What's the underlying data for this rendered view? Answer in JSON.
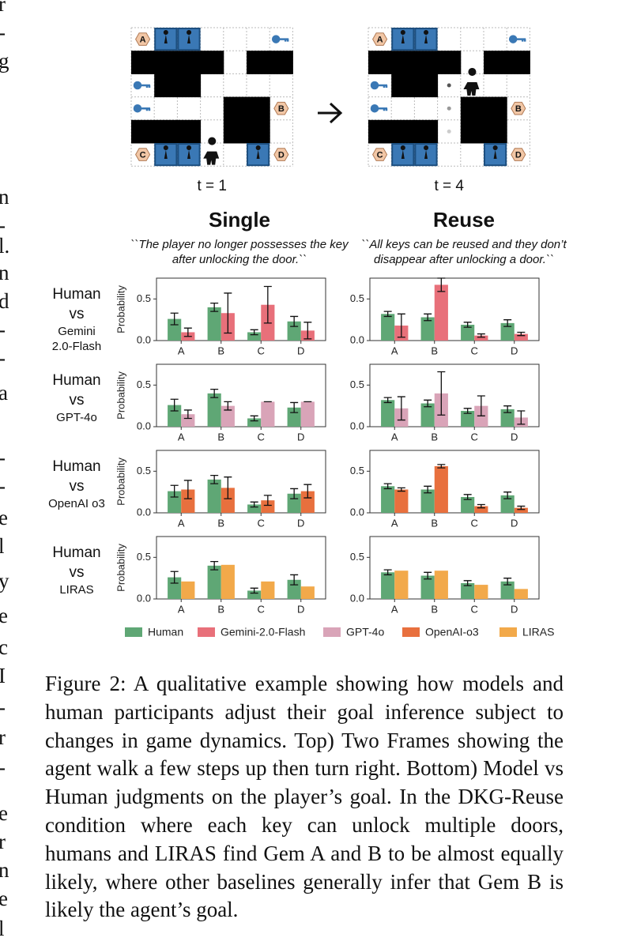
{
  "margin_text": [
    "r",
    "-",
    "g",
    "n",
    "-",
    "l.",
    "n",
    "d",
    "-",
    "-",
    "a",
    "-",
    "-",
    "e",
    "l",
    "y",
    "e",
    "c",
    "I",
    "-",
    "r",
    "-",
    "e",
    "r",
    "n",
    "e",
    "l"
  ],
  "frames": [
    {
      "caption": "t = 1",
      "gems": [
        "A",
        "B",
        "C",
        "D"
      ]
    },
    {
      "caption": "t = 4",
      "gems": [
        "A",
        "B",
        "C",
        "D"
      ]
    }
  ],
  "columns": [
    {
      "title": "Single",
      "quote": "``The player no longer possesses the key after unlocking the door.``"
    },
    {
      "title": "Reuse",
      "quote": "``All keys can be reused and they don’t disappear after unlocking a door.``"
    }
  ],
  "row_labels": [
    [
      "Human",
      "vs",
      "Gemini",
      "2.0-Flash"
    ],
    [
      "Human",
      "vs",
      "GPT-4o"
    ],
    [
      "Human",
      "vs",
      "OpenAI o3"
    ],
    [
      "Human",
      "vs",
      "LIRAS"
    ]
  ],
  "chart_data": [
    {
      "type": "bar",
      "ylabel": "Probability",
      "categories": [
        "A",
        "B",
        "C",
        "D"
      ],
      "ylim": [
        0,
        0.75
      ],
      "yticks": [
        {
          "value": 0,
          "label": "0.0"
        },
        0.5
      ],
      "series": [
        {
          "name": "Human",
          "color": "#5fa775",
          "values": [
            0.26,
            0.4,
            0.1,
            0.23
          ],
          "errors": [
            0.07,
            0.05,
            0.03,
            0.06
          ]
        },
        {
          "name": "Gemini-2.0-Flash",
          "color": "#e8707a",
          "values": [
            0.1,
            0.33,
            0.43,
            0.12
          ],
          "errors": [
            0.05,
            0.24,
            0.22,
            0.1
          ]
        }
      ]
    },
    {
      "type": "bar",
      "categories": [
        "A",
        "B",
        "C",
        "D"
      ],
      "ylim": [
        0,
        0.75
      ],
      "yticks": [
        {
          "value": 0,
          "label": "0.0"
        },
        0.5
      ],
      "series": [
        {
          "name": "Human",
          "color": "#5fa775",
          "values": [
            0.32,
            0.28,
            0.19,
            0.21
          ],
          "errors": [
            0.03,
            0.04,
            0.03,
            0.04
          ]
        },
        {
          "name": "Gemini-2.0-Flash",
          "color": "#e8707a",
          "values": [
            0.18,
            0.67,
            0.06,
            0.08
          ],
          "errors": [
            0.14,
            0.08,
            0.02,
            0.02
          ]
        }
      ]
    },
    {
      "type": "bar",
      "ylabel": "Probability",
      "categories": [
        "A",
        "B",
        "C",
        "D"
      ],
      "ylim": [
        0,
        0.75
      ],
      "yticks": [
        {
          "value": 0,
          "label": "0.0"
        },
        0.5
      ],
      "series": [
        {
          "name": "Human",
          "color": "#5fa775",
          "values": [
            0.26,
            0.4,
            0.1,
            0.23
          ],
          "errors": [
            0.07,
            0.05,
            0.03,
            0.06
          ]
        },
        {
          "name": "GPT-4o",
          "color": "#d9a4b8",
          "values": [
            0.15,
            0.25,
            0.3,
            0.3
          ],
          "errors": [
            0.05,
            0.05,
            0,
            0
          ]
        }
      ]
    },
    {
      "type": "bar",
      "categories": [
        "A",
        "B",
        "C",
        "D"
      ],
      "ylim": [
        0,
        0.75
      ],
      "yticks": [
        {
          "value": 0,
          "label": "0.0"
        },
        0.5
      ],
      "series": [
        {
          "name": "Human",
          "color": "#5fa775",
          "values": [
            0.32,
            0.28,
            0.19,
            0.21
          ],
          "errors": [
            0.03,
            0.04,
            0.03,
            0.04
          ]
        },
        {
          "name": "GPT-4o",
          "color": "#d9a4b8",
          "values": [
            0.22,
            0.4,
            0.25,
            0.11
          ],
          "errors": [
            0.14,
            0.26,
            0.12,
            0.08
          ]
        }
      ]
    },
    {
      "type": "bar",
      "ylabel": "Probability",
      "categories": [
        "A",
        "B",
        "C",
        "D"
      ],
      "ylim": [
        0,
        0.75
      ],
      "yticks": [
        {
          "value": 0,
          "label": "0.0"
        },
        0.5
      ],
      "series": [
        {
          "name": "Human",
          "color": "#5fa775",
          "values": [
            0.26,
            0.4,
            0.1,
            0.23
          ],
          "errors": [
            0.07,
            0.05,
            0.03,
            0.06
          ]
        },
        {
          "name": "OpenAI-o3",
          "color": "#e8703e",
          "values": [
            0.28,
            0.3,
            0.15,
            0.26
          ],
          "errors": [
            0.11,
            0.13,
            0.06,
            0.08
          ]
        }
      ]
    },
    {
      "type": "bar",
      "categories": [
        "A",
        "B",
        "C",
        "D"
      ],
      "ylim": [
        0,
        0.75
      ],
      "yticks": [
        {
          "value": 0,
          "label": "0.0"
        },
        0.5
      ],
      "series": [
        {
          "name": "Human",
          "color": "#5fa775",
          "values": [
            0.32,
            0.28,
            0.19,
            0.21
          ],
          "errors": [
            0.03,
            0.04,
            0.03,
            0.04
          ]
        },
        {
          "name": "OpenAI-o3",
          "color": "#e8703e",
          "values": [
            0.28,
            0.56,
            0.08,
            0.06
          ],
          "errors": [
            0.02,
            0.02,
            0.02,
            0.02
          ]
        }
      ]
    },
    {
      "type": "bar",
      "ylabel": "Probability",
      "categories": [
        "A",
        "B",
        "C",
        "D"
      ],
      "ylim": [
        0,
        0.75
      ],
      "yticks": [
        {
          "value": 0,
          "label": "0.0"
        },
        0.5
      ],
      "series": [
        {
          "name": "Human",
          "color": "#5fa775",
          "values": [
            0.26,
            0.4,
            0.1,
            0.23
          ],
          "errors": [
            0.07,
            0.05,
            0.03,
            0.06
          ]
        },
        {
          "name": "LIRAS",
          "color": "#f2a94a",
          "values": [
            0.21,
            0.41,
            0.21,
            0.15
          ]
        }
      ]
    },
    {
      "type": "bar",
      "categories": [
        "A",
        "B",
        "C",
        "D"
      ],
      "ylim": [
        0,
        0.75
      ],
      "yticks": [
        {
          "value": 0,
          "label": "0.0"
        },
        0.5
      ],
      "series": [
        {
          "name": "Human",
          "color": "#5fa775",
          "values": [
            0.32,
            0.28,
            0.19,
            0.21
          ],
          "errors": [
            0.03,
            0.04,
            0.03,
            0.04
          ]
        },
        {
          "name": "LIRAS",
          "color": "#f2a94a",
          "values": [
            0.34,
            0.34,
            0.17,
            0.12
          ]
        }
      ]
    }
  ],
  "caption": "Figure 2: A qualitative example showing how models and human participants adjust their goal inference subject to changes in game dynamics. Top) Two Frames showing the agent walk a few steps up then turn right. Bottom) Model vs Human judgments on the player’s goal. In the DKG-Reuse condition where each key can unlock multiple doors, humans and LIRAS find Gem A and B to be almost equally likely, where other baselines generally infer that Gem B is likely the agent’s goal."
}
